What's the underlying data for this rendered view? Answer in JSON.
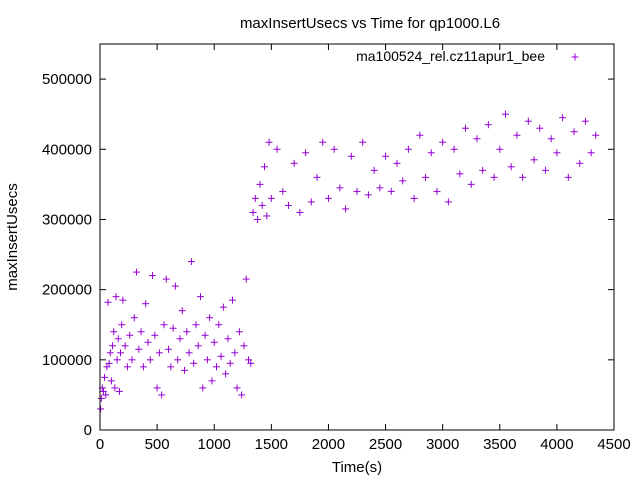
{
  "chart_data": {
    "type": "scatter",
    "title": "maxInsertUsecs vs Time for qp1000.L6",
    "xlabel": "Time(s)",
    "ylabel": "maxInsertUsecs",
    "xlim": [
      0,
      4500
    ],
    "ylim": [
      0,
      550000
    ],
    "x_ticks": [
      "0",
      "500",
      "1000",
      "1500",
      "2000",
      "2500",
      "3000",
      "3500",
      "4000",
      "4500"
    ],
    "y_ticks": [
      "0",
      "100000",
      "200000",
      "300000",
      "400000",
      "500000"
    ],
    "grid": false,
    "legend_position": "top-right",
    "marker": "+",
    "color": "#9400d3",
    "series": [
      {
        "name": "ma100524_rel.cz11apur1_bee",
        "points": [
          [
            5,
            30000
          ],
          [
            12,
            45000
          ],
          [
            20,
            60000
          ],
          [
            30,
            55000
          ],
          [
            40,
            75000
          ],
          [
            50,
            50000
          ],
          [
            60,
            90000
          ],
          [
            70,
            182000
          ],
          [
            80,
            95000
          ],
          [
            90,
            110000
          ],
          [
            100,
            70000
          ],
          [
            110,
            120000
          ],
          [
            120,
            140000
          ],
          [
            130,
            60000
          ],
          [
            140,
            190000
          ],
          [
            150,
            100000
          ],
          [
            160,
            130000
          ],
          [
            170,
            55000
          ],
          [
            180,
            110000
          ],
          [
            190,
            150000
          ],
          [
            200,
            185000
          ],
          [
            220,
            120000
          ],
          [
            240,
            90000
          ],
          [
            260,
            135000
          ],
          [
            280,
            100000
          ],
          [
            300,
            160000
          ],
          [
            320,
            225000
          ],
          [
            340,
            115000
          ],
          [
            360,
            140000
          ],
          [
            380,
            90000
          ],
          [
            400,
            180000
          ],
          [
            420,
            125000
          ],
          [
            440,
            100000
          ],
          [
            460,
            220000
          ],
          [
            480,
            135000
          ],
          [
            500,
            60000
          ],
          [
            520,
            110000
          ],
          [
            540,
            50000
          ],
          [
            560,
            150000
          ],
          [
            580,
            215000
          ],
          [
            600,
            115000
          ],
          [
            620,
            90000
          ],
          [
            640,
            145000
          ],
          [
            660,
            205000
          ],
          [
            680,
            100000
          ],
          [
            700,
            130000
          ],
          [
            720,
            170000
          ],
          [
            740,
            85000
          ],
          [
            760,
            140000
          ],
          [
            780,
            110000
          ],
          [
            800,
            240000
          ],
          [
            820,
            95000
          ],
          [
            840,
            150000
          ],
          [
            860,
            120000
          ],
          [
            880,
            190000
          ],
          [
            900,
            60000
          ],
          [
            920,
            135000
          ],
          [
            940,
            100000
          ],
          [
            960,
            160000
          ],
          [
            980,
            70000
          ],
          [
            1000,
            125000
          ],
          [
            1020,
            90000
          ],
          [
            1040,
            150000
          ],
          [
            1060,
            105000
          ],
          [
            1080,
            175000
          ],
          [
            1100,
            80000
          ],
          [
            1120,
            130000
          ],
          [
            1140,
            95000
          ],
          [
            1160,
            185000
          ],
          [
            1180,
            110000
          ],
          [
            1200,
            60000
          ],
          [
            1220,
            140000
          ],
          [
            1240,
            50000
          ],
          [
            1260,
            120000
          ],
          [
            1280,
            215000
          ],
          [
            1300,
            100000
          ],
          [
            1320,
            95000
          ],
          [
            1340,
            310000
          ],
          [
            1360,
            330000
          ],
          [
            1380,
            300000
          ],
          [
            1400,
            350000
          ],
          [
            1420,
            320000
          ],
          [
            1440,
            375000
          ],
          [
            1460,
            305000
          ],
          [
            1480,
            410000
          ],
          [
            1500,
            330000
          ],
          [
            1550,
            400000
          ],
          [
            1600,
            340000
          ],
          [
            1650,
            320000
          ],
          [
            1700,
            380000
          ],
          [
            1750,
            310000
          ],
          [
            1800,
            395000
          ],
          [
            1850,
            325000
          ],
          [
            1900,
            360000
          ],
          [
            1950,
            410000
          ],
          [
            2000,
            330000
          ],
          [
            2050,
            400000
          ],
          [
            2100,
            345000
          ],
          [
            2150,
            315000
          ],
          [
            2200,
            390000
          ],
          [
            2250,
            340000
          ],
          [
            2300,
            410000
          ],
          [
            2350,
            335000
          ],
          [
            2400,
            370000
          ],
          [
            2450,
            345000
          ],
          [
            2500,
            390000
          ],
          [
            2550,
            340000
          ],
          [
            2600,
            380000
          ],
          [
            2650,
            355000
          ],
          [
            2700,
            400000
          ],
          [
            2750,
            330000
          ],
          [
            2800,
            420000
          ],
          [
            2850,
            360000
          ],
          [
            2900,
            395000
          ],
          [
            2950,
            340000
          ],
          [
            3000,
            410000
          ],
          [
            3050,
            325000
          ],
          [
            3100,
            400000
          ],
          [
            3150,
            365000
          ],
          [
            3200,
            430000
          ],
          [
            3250,
            350000
          ],
          [
            3300,
            415000
          ],
          [
            3350,
            370000
          ],
          [
            3400,
            435000
          ],
          [
            3450,
            360000
          ],
          [
            3500,
            400000
          ],
          [
            3550,
            450000
          ],
          [
            3600,
            375000
          ],
          [
            3650,
            420000
          ],
          [
            3700,
            360000
          ],
          [
            3750,
            440000
          ],
          [
            3800,
            385000
          ],
          [
            3850,
            430000
          ],
          [
            3900,
            370000
          ],
          [
            3950,
            415000
          ],
          [
            4000,
            395000
          ],
          [
            4050,
            445000
          ],
          [
            4100,
            360000
          ],
          [
            4150,
            425000
          ],
          [
            4200,
            380000
          ],
          [
            4250,
            440000
          ],
          [
            4300,
            395000
          ],
          [
            4340,
            420000
          ]
        ]
      }
    ]
  }
}
